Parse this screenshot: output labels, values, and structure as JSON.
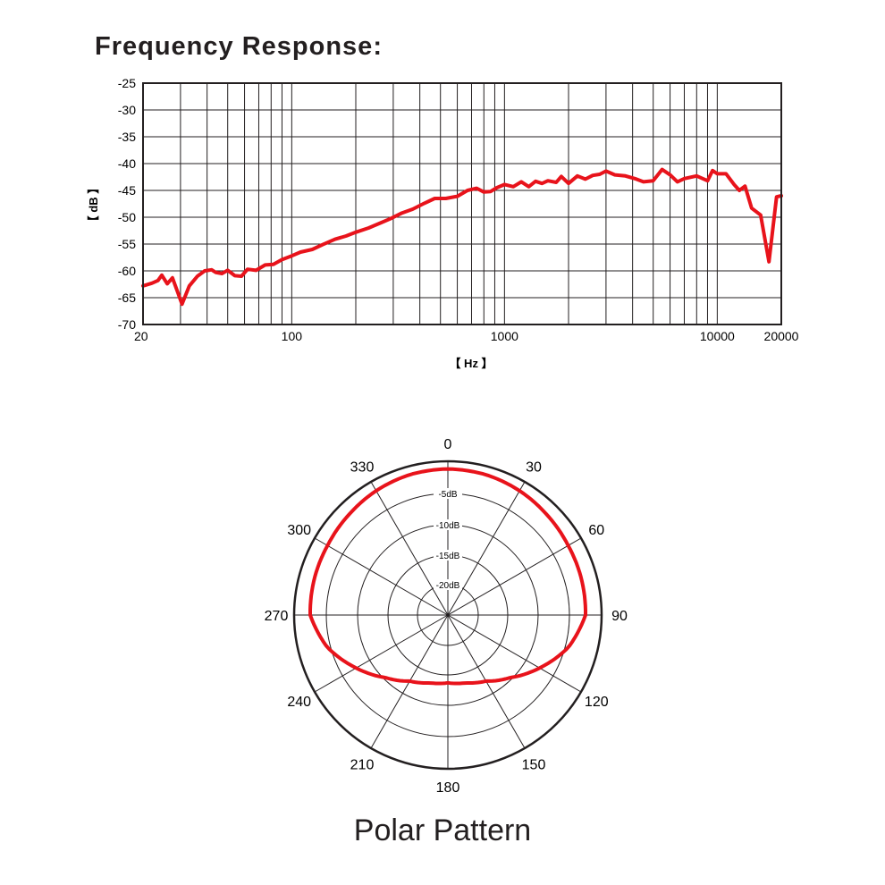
{
  "chart_data": [
    {
      "type": "line",
      "title": "Frequency Response:",
      "xlabel": "【 Hz 】",
      "ylabel": "【 dB 】",
      "xscale": "log",
      "xlim": [
        20,
        20000
      ],
      "ylim": [
        -70,
        -25
      ],
      "grid": true,
      "x_ticks": [
        20,
        100,
        1000,
        10000,
        20000
      ],
      "x_tick_labels": [
        "20",
        "100",
        "1000",
        "10000",
        "20000"
      ],
      "y_ticks": [
        -25,
        -30,
        -35,
        -40,
        -45,
        -50,
        -55,
        -60,
        -65,
        -70
      ],
      "y_tick_labels": [
        "-25",
        "-30",
        "-35",
        "-40",
        "-45",
        "-50",
        "-55",
        "-60",
        "-65",
        "-70"
      ],
      "line_color": "#e8131b",
      "x": [
        20,
        22,
        23.5,
        24.5,
        26,
        27.5,
        29,
        30.5,
        33,
        36,
        39,
        42,
        44,
        47,
        50,
        54,
        58,
        62,
        68,
        75,
        82,
        90,
        100,
        110,
        125,
        140,
        160,
        180,
        200,
        230,
        260,
        290,
        330,
        370,
        420,
        470,
        530,
        600,
        670,
        740,
        800,
        860,
        920,
        1000,
        1100,
        1200,
        1300,
        1400,
        1500,
        1600,
        1750,
        1850,
        2000,
        2200,
        2400,
        2600,
        2800,
        3000,
        3300,
        3700,
        4100,
        4500,
        5000,
        5500,
        6000,
        6500,
        7000,
        8000,
        9000,
        9500,
        10000,
        10500,
        11000,
        12000,
        12700,
        13500,
        14500,
        16000,
        17500,
        19000,
        20000
      ],
      "y": [
        -62.8,
        -62.3,
        -61.8,
        -60.8,
        -62.4,
        -61.3,
        -63.8,
        -66.2,
        -62.8,
        -61.0,
        -60.0,
        -59.8,
        -60.3,
        -60.5,
        -59.9,
        -60.9,
        -61.0,
        -59.7,
        -59.9,
        -58.9,
        -58.8,
        -57.9,
        -57.2,
        -56.5,
        -56.0,
        -55.1,
        -54.1,
        -53.5,
        -52.8,
        -52.0,
        -51.1,
        -50.3,
        -49.2,
        -48.5,
        -47.4,
        -46.5,
        -46.5,
        -46.1,
        -45.0,
        -44.6,
        -45.3,
        -45.2,
        -44.5,
        -43.9,
        -44.3,
        -43.4,
        -44.3,
        -43.3,
        -43.7,
        -43.2,
        -43.5,
        -42.4,
        -43.7,
        -42.3,
        -42.9,
        -42.2,
        -42.0,
        -41.4,
        -42.1,
        -42.3,
        -42.8,
        -43.4,
        -43.2,
        -41.1,
        -42.1,
        -43.4,
        -42.8,
        -42.3,
        -43.2,
        -41.3,
        -41.9,
        -41.9,
        -41.9,
        -43.9,
        -45.0,
        -44.2,
        -48.3,
        -49.6,
        -58.3,
        -46.2,
        -46.0
      ]
    },
    {
      "type": "polar",
      "title": "Polar Pattern",
      "angle_labels": [
        "0",
        "30",
        "60",
        "90",
        "120",
        "150",
        "180",
        "210",
        "240",
        "270",
        "300",
        "330"
      ],
      "ring_labels": [
        "-5dB",
        "-10dB",
        "-15dB",
        "-20dB"
      ],
      "rmin_db": -25,
      "rmax_db": 0,
      "line_color": "#e8131b",
      "angles_deg": [
        0,
        15,
        30,
        45,
        60,
        75,
        90,
        105,
        120,
        135,
        150,
        165,
        180,
        195,
        210,
        225,
        240,
        255,
        270,
        285,
        300,
        315,
        330,
        345,
        360
      ],
      "level_db": [
        -1.2,
        -1.3,
        -1.6,
        -2.0,
        -2.3,
        -2.4,
        -2.5,
        -4.5,
        -7.5,
        -10.3,
        -12.3,
        -13.3,
        -13.7,
        -13.3,
        -12.3,
        -10.3,
        -7.5,
        -4.5,
        -2.5,
        -2.4,
        -2.3,
        -2.0,
        -1.6,
        -1.3,
        -1.2
      ]
    }
  ]
}
